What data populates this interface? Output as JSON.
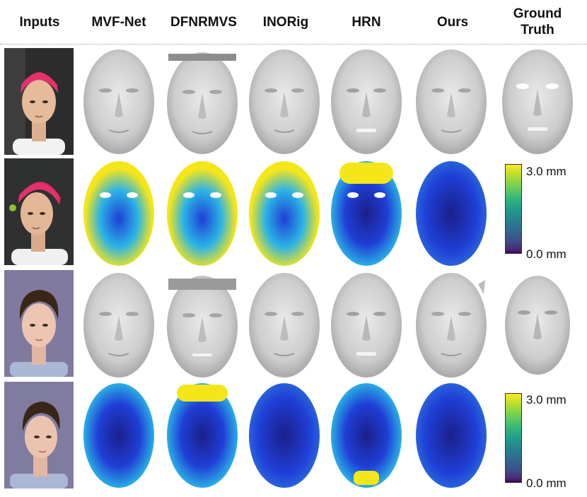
{
  "headers": {
    "inputs": "Inputs",
    "mvfnet": "MVF-Net",
    "dfnrmvs": "DFNRMVS",
    "inorig": "INORig",
    "hrn": "HRN",
    "ours": "Ours",
    "ground_truth": "Ground Truth"
  },
  "colorbar": {
    "max_label": "3.0 mm",
    "min_label": "0.0 mm",
    "colormap": "viridis"
  },
  "colors": {
    "mesh_gray": "#cfcfcf",
    "heat_yellow": "#f5e61a",
    "heat_cyan": "#2bb3e6",
    "heat_blue": "#1f3fd6",
    "heat_navy": "#1b1f8a"
  },
  "rows": [
    {
      "subject": "subject-1",
      "kind": "mesh"
    },
    {
      "subject": "subject-1",
      "kind": "error"
    },
    {
      "subject": "subject-2",
      "kind": "mesh"
    },
    {
      "subject": "subject-2",
      "kind": "error"
    }
  ]
}
